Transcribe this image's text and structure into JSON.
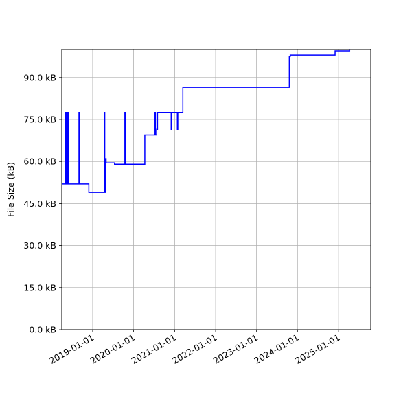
{
  "chart_data": {
    "type": "line",
    "title": "",
    "xlabel": "",
    "ylabel": "File Size (kB)",
    "ylim": [
      0,
      100
    ],
    "xlim": [
      "2018-04-01",
      "2025-10-15"
    ],
    "grid": true,
    "line_color": "#0000ff",
    "y_ticks": [
      0,
      15,
      30,
      45,
      60,
      75,
      90
    ],
    "y_tick_labels": [
      "0.0 kB",
      "15.0 kB",
      "30.0 kB",
      "45.0 kB",
      "60.0 kB",
      "75.0 kB",
      "90.0 kB"
    ],
    "x_ticks": [
      "2019-01-01",
      "2020-01-01",
      "2021-01-01",
      "2022-01-01",
      "2023-01-01",
      "2024-01-01",
      "2025-01-01"
    ],
    "x_tick_labels": [
      "2019-01-01",
      "2020-01-01",
      "2021-01-01",
      "2022-01-01",
      "2023-01-01",
      "2024-01-01",
      "2025-01-01"
    ],
    "series": [
      {
        "x": [
          "2018-04-01",
          "2018-05-01",
          "2018-05-01",
          "2018-05-05",
          "2018-05-05",
          "2018-05-10",
          "2018-05-10",
          "2018-05-14",
          "2018-05-14",
          "2018-05-18",
          "2018-05-18",
          "2018-05-22",
          "2018-05-22",
          "2018-05-26",
          "2018-05-26",
          "2018-05-30",
          "2018-05-30",
          "2018-06-03",
          "2018-06-03",
          "2018-09-01",
          "2018-09-01",
          "2018-09-05",
          "2018-09-05",
          "2018-11-28",
          "2018-11-28",
          "2019-04-15",
          "2019-04-15",
          "2019-04-19",
          "2019-04-19",
          "2019-04-23",
          "2019-04-23",
          "2019-05-01",
          "2019-05-01",
          "2019-07-15",
          "2019-07-15",
          "2019-10-15",
          "2019-10-15",
          "2019-10-19",
          "2019-10-19",
          "2020-04-10",
          "2020-04-10",
          "2020-07-10",
          "2020-07-10",
          "2020-07-14",
          "2020-07-14",
          "2020-07-25",
          "2020-07-25",
          "2020-08-01",
          "2020-08-01",
          "2020-12-01",
          "2020-12-01",
          "2020-12-05",
          "2020-12-05",
          "2021-01-25",
          "2021-01-25",
          "2021-01-29",
          "2021-01-29",
          "2021-03-15",
          "2021-03-15",
          "2022-06-20",
          "2022-08-20",
          "2023-06-01",
          "2023-06-01",
          "2023-10-20",
          "2023-10-20",
          "2023-10-28",
          "2023-10-28",
          "2023-11-10",
          "2023-11-10",
          "2024-12-01",
          "2024-12-01",
          "2025-04-10",
          "2025-04-10"
        ],
        "y": [
          52,
          52,
          77.5,
          77.5,
          52,
          52,
          77.5,
          77.5,
          52,
          52,
          77.5,
          77.5,
          52,
          52,
          77.5,
          77.5,
          52,
          52,
          52,
          52,
          77.5,
          77.5,
          52,
          52,
          49,
          49,
          77.5,
          77.5,
          49,
          49,
          61,
          61,
          59.5,
          59.5,
          59,
          59,
          77.5,
          77.5,
          59,
          59,
          69.5,
          69.5,
          77.5,
          77.5,
          69.5,
          69.5,
          71.5,
          71.5,
          77.5,
          77.5,
          71.5,
          71.5,
          77.5,
          77.5,
          71.5,
          71.5,
          77.5,
          77.5,
          86.5,
          86.5,
          86.5,
          86.5,
          86.5,
          86.5,
          97.5,
          97.5,
          98,
          98,
          98,
          98,
          99.5,
          99.5,
          100
        ]
      }
    ]
  }
}
